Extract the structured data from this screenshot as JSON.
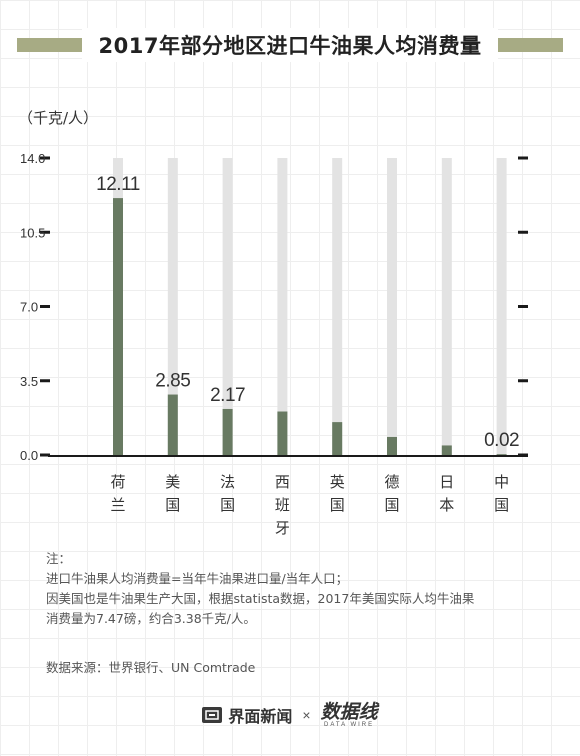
{
  "colors": {
    "bar": "#687a62",
    "track": "#e3e3e3",
    "title_band": "#a7ab84",
    "axis": "#1a1a1a"
  },
  "title": "2017年部分地区进口牛油果人均消费量",
  "unit_label": "（千克/人）",
  "chart_data": {
    "type": "bar",
    "title": "2017年部分地区进口牛油果人均消费量",
    "ylabel": "（千克/人）",
    "xlabel": "",
    "categories": [
      "荷兰",
      "美国",
      "法国",
      "西班牙",
      "英国",
      "德国",
      "日本",
      "中国"
    ],
    "category_lines": [
      [
        "荷",
        "兰"
      ],
      [
        "美",
        "国"
      ],
      [
        "法",
        "国"
      ],
      [
        "西",
        "班",
        "牙"
      ],
      [
        "英",
        "国"
      ],
      [
        "德",
        "国"
      ],
      [
        "日",
        "本"
      ],
      [
        "中",
        "国"
      ]
    ],
    "values": [
      12.11,
      2.85,
      2.17,
      2.05,
      1.55,
      0.85,
      0.45,
      0.02
    ],
    "data_labels": [
      "12.11",
      "2.85",
      "2.17",
      "",
      "",
      "",
      "",
      "0.02"
    ],
    "yticks": [
      "14.0",
      "10.5",
      "7.0",
      "3.5",
      "0.0"
    ],
    "ytick_values": [
      14.0,
      10.5,
      7.0,
      3.5,
      0.0
    ],
    "ylim": [
      0,
      14
    ],
    "grid": false,
    "legend": "none"
  },
  "notes": {
    "heading": "注：",
    "line1": "进口牛油果人均消费量=当年牛油果进口量/当年人口；",
    "line2": "因美国也是牛油果生产大国，根据statista数据，2017年美国实际人均牛油果",
    "line3": "消费量为7.47磅，约合3.38千克/人。"
  },
  "source": "数据来源：世界银行、UN Comtrade",
  "footer": {
    "brand": "界面新闻",
    "separator": "×",
    "partner": "数据线",
    "partner_sub": "DATA WIRE",
    "brand_icon": "jiemian-logo-icon"
  }
}
